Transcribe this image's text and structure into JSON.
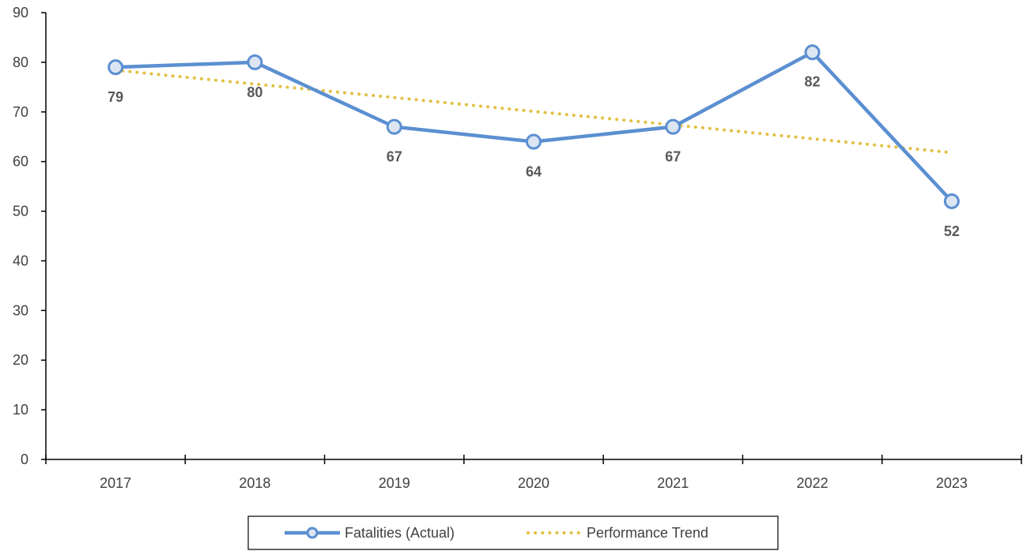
{
  "chart_data": {
    "type": "line",
    "categories": [
      "2017",
      "2018",
      "2019",
      "2020",
      "2021",
      "2022",
      "2023"
    ],
    "series": [
      {
        "name": "Fatalities (Actual)",
        "values": [
          79,
          80,
          67,
          64,
          67,
          82,
          52
        ],
        "style": "solid-with-circle-markers",
        "color": "#5B8FD1",
        "marker_fill": "#DCE6F2"
      },
      {
        "name": "Performance Trend",
        "values": [
          78.4,
          75.6,
          72.9,
          70.1,
          67.4,
          64.6,
          61.8
        ],
        "style": "dotted",
        "color": "#E2C044"
      }
    ],
    "data_labels": [
      "79",
      "80",
      "67",
      "64",
      "67",
      "82",
      "52"
    ],
    "y_ticks": [
      "0",
      "10",
      "20",
      "30",
      "40",
      "50",
      "60",
      "70",
      "80",
      "90"
    ],
    "ylim": [
      0,
      90
    ],
    "grid": false,
    "legend_position": "bottom-center",
    "axis_color": "#000000",
    "label_color": "#595959"
  }
}
